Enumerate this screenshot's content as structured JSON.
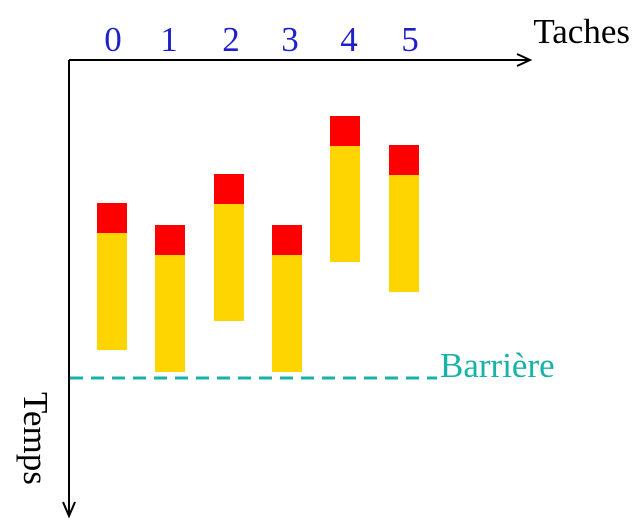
{
  "axes": {
    "x_label": "Taches",
    "y_label": "Temps"
  },
  "tasks": [
    {
      "label": "0"
    },
    {
      "label": "1"
    },
    {
      "label": "2"
    },
    {
      "label": "3"
    },
    {
      "label": "4"
    },
    {
      "label": "5"
    }
  ],
  "barrier": {
    "label": "Barrière"
  },
  "colors": {
    "axis": "#000000",
    "task_label": "#1f1fcc",
    "overhead_block": "#ff0000",
    "work_block": "#ffd500",
    "barrier": "#19b2a8"
  }
}
